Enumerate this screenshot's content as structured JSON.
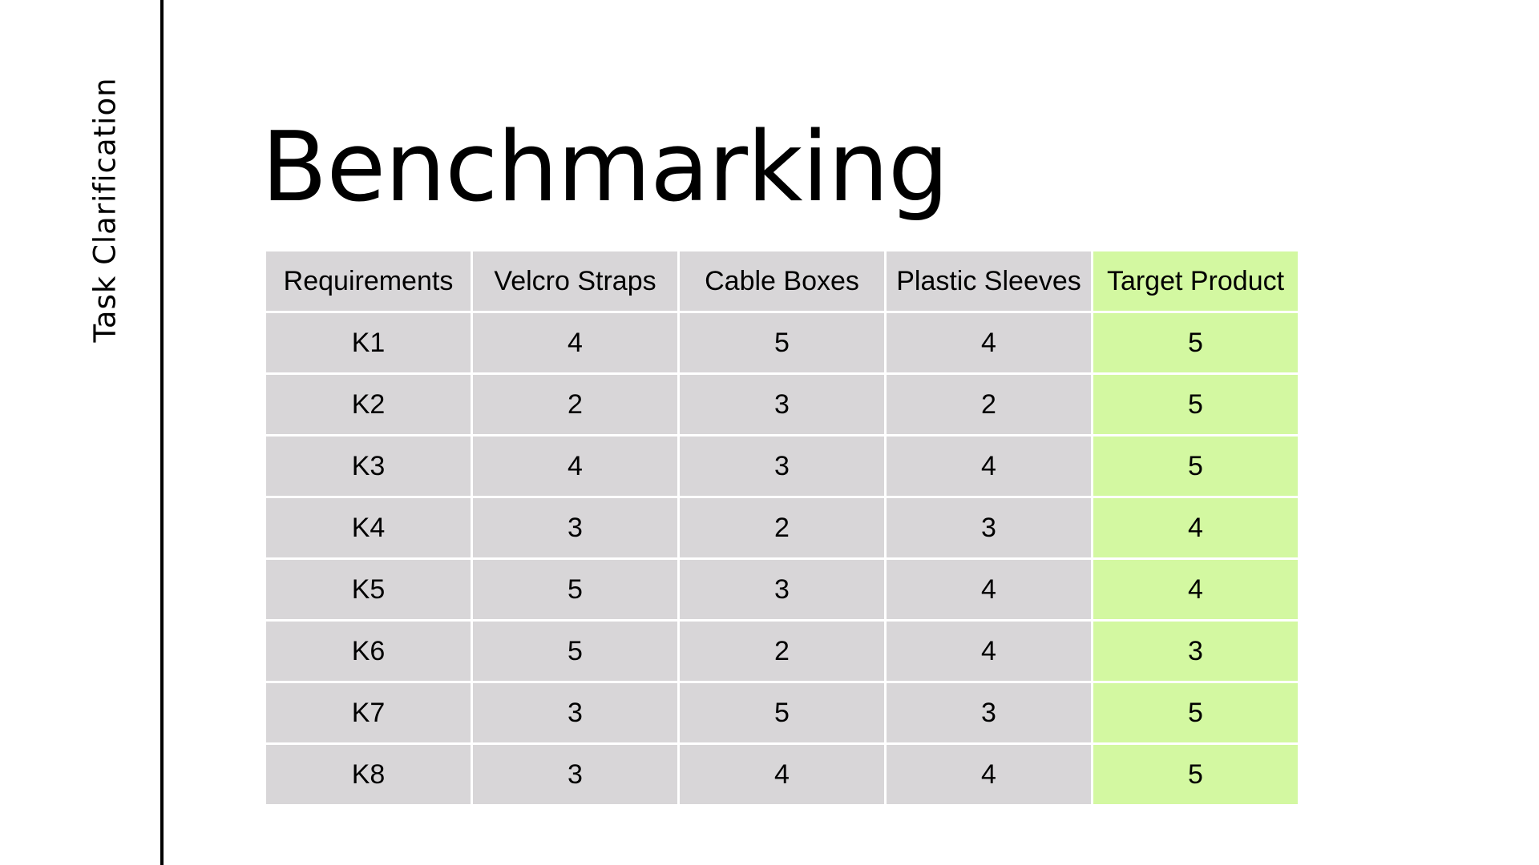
{
  "slide": {
    "side_label": "Task Clarification",
    "title": "Benchmarking"
  },
  "table": {
    "headers": [
      "Requirements",
      "Velcro Straps",
      "Cable Boxes",
      "Plastic Sleeves",
      "Target Product"
    ],
    "rows": [
      [
        "K1",
        "4",
        "5",
        "4",
        "5"
      ],
      [
        "K2",
        "2",
        "3",
        "2",
        "5"
      ],
      [
        "K3",
        "4",
        "3",
        "4",
        "5"
      ],
      [
        "K4",
        "3",
        "2",
        "3",
        "4"
      ],
      [
        "K5",
        "5",
        "3",
        "4",
        "4"
      ],
      [
        "K6",
        "5",
        "2",
        "4",
        "3"
      ],
      [
        "K7",
        "3",
        "5",
        "3",
        "5"
      ],
      [
        "K8",
        "3",
        "4",
        "4",
        "5"
      ]
    ]
  },
  "colors": {
    "cell": "#d8d6d8",
    "target_column": "#d3f8a1",
    "grid_line": "#ffffff",
    "text": "#000000"
  }
}
